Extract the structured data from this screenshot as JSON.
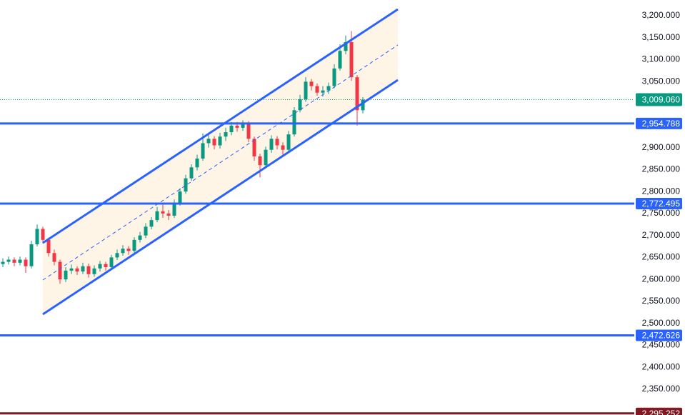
{
  "chart_data": {
    "type": "candlestick",
    "up_color": "#089981",
    "down_color": "#f23645",
    "ylim": [
      2291.5,
      3235.8
    ],
    "yticks": [
      {
        "value": 3200,
        "label": "3,200.000"
      },
      {
        "value": 3150,
        "label": "3,150.000"
      },
      {
        "value": 3100,
        "label": "3,100.000"
      },
      {
        "value": 3050,
        "label": "3,050.000"
      },
      {
        "value": 2900,
        "label": "2,900.000"
      },
      {
        "value": 2850,
        "label": "2,850.000"
      },
      {
        "value": 2800,
        "label": "2,800.000"
      },
      {
        "value": 2750,
        "label": "2,750.000"
      },
      {
        "value": 2700,
        "label": "2,700.000"
      },
      {
        "value": 2650,
        "label": "2,650.000"
      },
      {
        "value": 2600,
        "label": "2,600.000"
      },
      {
        "value": 2550,
        "label": "2,550.000"
      },
      {
        "value": 2500,
        "label": "2,500.000"
      },
      {
        "value": 2450,
        "label": "2,450.000"
      },
      {
        "value": 2400,
        "label": "2,400.000"
      },
      {
        "value": 2350,
        "label": "2,350.000"
      }
    ],
    "levels": [
      {
        "value": 2954.788,
        "label": "2,954.788",
        "color": "#2962ff"
      },
      {
        "value": 2772.495,
        "label": "2,772.495",
        "color": "#2962ff"
      },
      {
        "value": 2472.626,
        "label": "2,472.626",
        "color": "#2962ff"
      },
      {
        "value": 2295.252,
        "label": "2,295.252",
        "color": "#801922"
      }
    ],
    "last_price": {
      "value": 3009.06,
      "label": "3,009.060",
      "color": "#089981"
    },
    "candles": [
      [
        2635,
        2648,
        2628,
        2640
      ],
      [
        2640,
        2652,
        2634,
        2645
      ],
      [
        2645,
        2650,
        2630,
        2638
      ],
      [
        2638,
        2652,
        2632,
        2645
      ],
      [
        2645,
        2650,
        2615,
        2630
      ],
      [
        2630,
        2688,
        2625,
        2680
      ],
      [
        2680,
        2725,
        2675,
        2715
      ],
      [
        2715,
        2720,
        2682,
        2690
      ],
      [
        2690,
        2695,
        2652,
        2660
      ],
      [
        2660,
        2668,
        2632,
        2640
      ],
      [
        2640,
        2645,
        2590,
        2600
      ],
      [
        2600,
        2628,
        2594,
        2620
      ],
      [
        2620,
        2634,
        2612,
        2625
      ],
      [
        2625,
        2630,
        2610,
        2618
      ],
      [
        2618,
        2638,
        2612,
        2630
      ],
      [
        2630,
        2636,
        2604,
        2612
      ],
      [
        2612,
        2632,
        2606,
        2625
      ],
      [
        2625,
        2642,
        2618,
        2635
      ],
      [
        2635,
        2640,
        2620,
        2628
      ],
      [
        2628,
        2656,
        2622,
        2650
      ],
      [
        2650,
        2668,
        2644,
        2660
      ],
      [
        2660,
        2678,
        2654,
        2670
      ],
      [
        2670,
        2676,
        2656,
        2665
      ],
      [
        2665,
        2696,
        2660,
        2690
      ],
      [
        2690,
        2708,
        2684,
        2700
      ],
      [
        2700,
        2728,
        2694,
        2720
      ],
      [
        2720,
        2742,
        2714,
        2735
      ],
      [
        2735,
        2765,
        2730,
        2755
      ],
      [
        2755,
        2770,
        2740,
        2750
      ],
      [
        2750,
        2758,
        2735,
        2745
      ],
      [
        2745,
        2782,
        2740,
        2775
      ],
      [
        2775,
        2808,
        2768,
        2800
      ],
      [
        2800,
        2838,
        2795,
        2830
      ],
      [
        2830,
        2862,
        2824,
        2855
      ],
      [
        2855,
        2884,
        2848,
        2875
      ],
      [
        2875,
        2932,
        2870,
        2910
      ],
      [
        2910,
        2930,
        2900,
        2920
      ],
      [
        2920,
        2926,
        2896,
        2905
      ],
      [
        2905,
        2934,
        2898,
        2925
      ],
      [
        2925,
        2945,
        2915,
        2935
      ],
      [
        2935,
        2958,
        2928,
        2950
      ],
      [
        2950,
        2958,
        2936,
        2945
      ],
      [
        2945,
        2962,
        2938,
        2955
      ],
      [
        2955,
        2960,
        2912,
        2920
      ],
      [
        2920,
        2925,
        2870,
        2880
      ],
      [
        2880,
        2886,
        2832,
        2860
      ],
      [
        2860,
        2902,
        2855,
        2895
      ],
      [
        2895,
        2928,
        2888,
        2920
      ],
      [
        2920,
        2926,
        2896,
        2905
      ],
      [
        2905,
        2912,
        2880,
        2895
      ],
      [
        2895,
        2938,
        2890,
        2930
      ],
      [
        2930,
        2992,
        2925,
        2985
      ],
      [
        2985,
        3020,
        2980,
        3010
      ],
      [
        3010,
        3060,
        3004,
        3050
      ],
      [
        3050,
        3056,
        3030,
        3040
      ],
      [
        3040,
        3046,
        3018,
        3025
      ],
      [
        3025,
        3040,
        3016,
        3030
      ],
      [
        3030,
        3048,
        3022,
        3040
      ],
      [
        3040,
        3090,
        3035,
        3080
      ],
      [
        3080,
        3135,
        3075,
        3120
      ],
      [
        3120,
        3155,
        3112,
        3140
      ],
      [
        3140,
        3165,
        3052,
        3060
      ],
      [
        3060,
        3065,
        2950,
        2985
      ],
      [
        2985,
        3015,
        2978,
        3009.06
      ]
    ]
  }
}
